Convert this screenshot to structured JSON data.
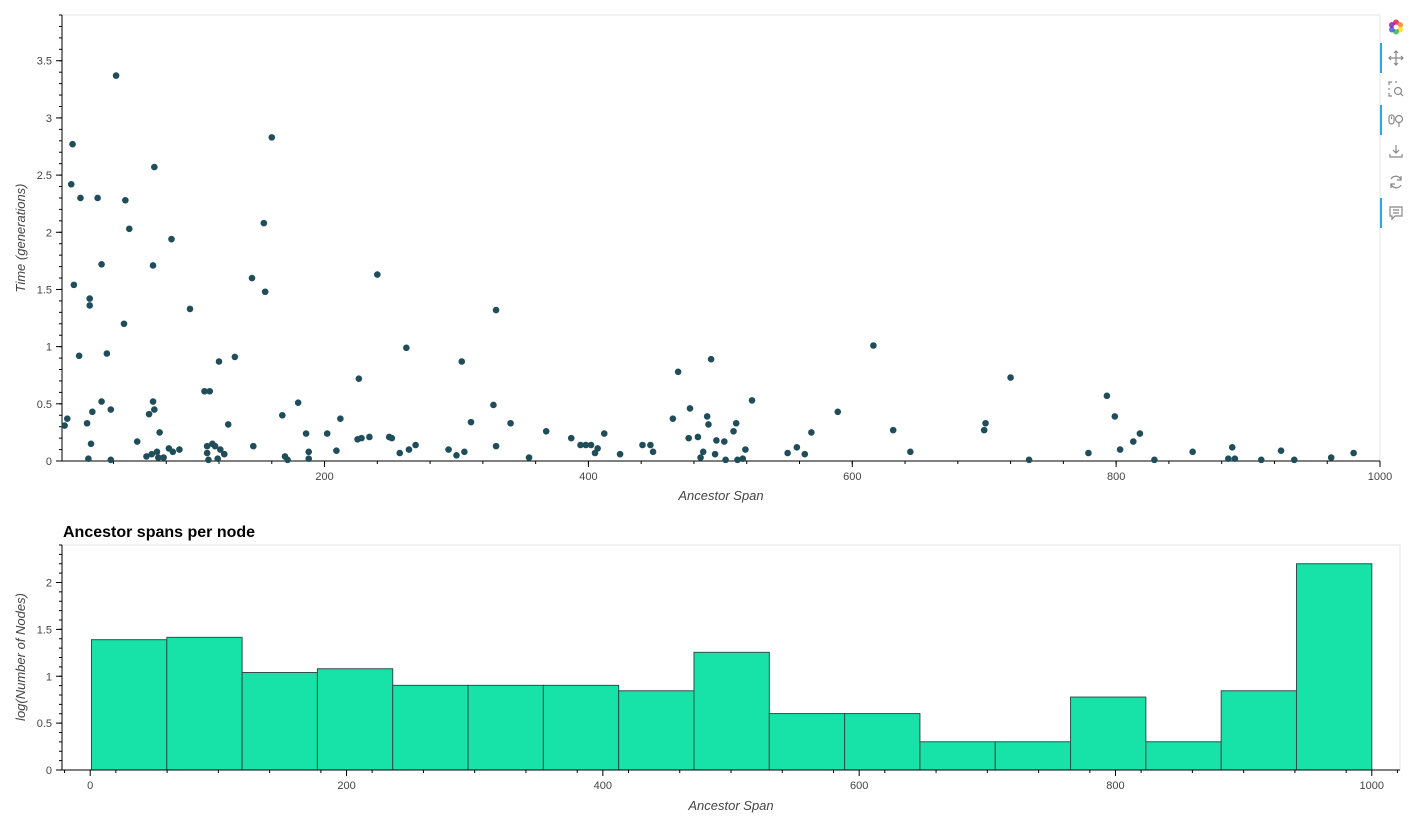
{
  "chart_data": [
    {
      "type": "scatter",
      "title": "",
      "xlabel": "Ancestor Span",
      "ylabel": "Time (generations)",
      "xlim": [
        1,
        1000
      ],
      "ylim": [
        0,
        3.9
      ],
      "xticks": [
        200,
        400,
        600,
        800,
        1000
      ],
      "xtick_labels": [
        "200",
        "400",
        "600",
        "800",
        "1000"
      ],
      "yticks": [
        0,
        0.5,
        1,
        1.5,
        2,
        2.5,
        3,
        3.5
      ],
      "ytick_labels": [
        "0",
        "0.5",
        "1",
        "1.5",
        "2",
        "2.5",
        "3",
        "3.5"
      ],
      "point_color": "#1f4e5a",
      "grid": false,
      "points": [
        [
          3,
          0.31
        ],
        [
          5,
          0.37
        ],
        [
          8,
          2.42
        ],
        [
          9,
          2.77
        ],
        [
          10,
          1.54
        ],
        [
          14,
          0.92
        ],
        [
          15,
          2.3
        ],
        [
          20,
          0.33
        ],
        [
          21,
          0.02
        ],
        [
          22,
          1.42
        ],
        [
          22,
          1.36
        ],
        [
          23,
          0.15
        ],
        [
          24,
          0.43
        ],
        [
          28,
          2.3
        ],
        [
          31,
          1.72
        ],
        [
          31,
          0.52
        ],
        [
          35,
          0.94
        ],
        [
          38,
          0.45
        ],
        [
          38,
          0.01
        ],
        [
          42,
          3.37
        ],
        [
          48,
          1.2
        ],
        [
          49,
          2.28
        ],
        [
          52,
          2.03
        ],
        [
          58,
          0.17
        ],
        [
          65,
          0.04
        ],
        [
          67,
          0.41
        ],
        [
          69,
          0.06
        ],
        [
          70,
          0.52
        ],
        [
          70,
          1.71
        ],
        [
          71,
          2.57
        ],
        [
          71,
          0.45
        ],
        [
          73,
          0.08
        ],
        [
          74,
          0.03
        ],
        [
          75,
          0.25
        ],
        [
          78,
          0.03
        ],
        [
          82,
          0.11
        ],
        [
          84,
          1.94
        ],
        [
          85,
          0.08
        ],
        [
          90,
          0.1
        ],
        [
          98,
          1.33
        ],
        [
          109,
          0.61
        ],
        [
          113,
          0.61
        ],
        [
          111,
          0.13
        ],
        [
          111,
          0.07
        ],
        [
          112,
          0.01
        ],
        [
          115,
          0.15
        ],
        [
          117,
          0.13
        ],
        [
          119,
          0.02
        ],
        [
          120,
          0.87
        ],
        [
          121,
          0.1
        ],
        [
          124,
          0.06
        ],
        [
          127,
          0.32
        ],
        [
          132,
          0.91
        ],
        [
          145,
          1.6
        ],
        [
          146,
          0.13
        ],
        [
          154,
          2.08
        ],
        [
          155,
          1.48
        ],
        [
          160,
          2.83
        ],
        [
          168,
          0.4
        ],
        [
          170,
          0.04
        ],
        [
          172,
          0.01
        ],
        [
          180,
          0.51
        ],
        [
          186,
          0.24
        ],
        [
          188,
          0.08
        ],
        [
          188,
          0.02
        ],
        [
          202,
          0.24
        ],
        [
          209,
          0.09
        ],
        [
          212,
          0.37
        ],
        [
          225,
          0.19
        ],
        [
          226,
          0.72
        ],
        [
          228,
          0.2
        ],
        [
          234,
          0.21
        ],
        [
          240,
          1.63
        ],
        [
          249,
          0.21
        ],
        [
          251,
          0.2
        ],
        [
          257,
          0.07
        ],
        [
          262,
          0.99
        ],
        [
          264,
          0.1
        ],
        [
          269,
          0.14
        ],
        [
          294,
          0.1
        ],
        [
          300,
          0.05
        ],
        [
          304,
          0.87
        ],
        [
          306,
          0.08
        ],
        [
          311,
          0.34
        ],
        [
          328,
          0.49
        ],
        [
          330,
          1.32
        ],
        [
          330,
          0.13
        ],
        [
          341,
          0.33
        ],
        [
          355,
          0.03
        ],
        [
          368,
          0.26
        ],
        [
          387,
          0.2
        ],
        [
          394,
          0.14
        ],
        [
          398,
          0.14
        ],
        [
          402,
          0.14
        ],
        [
          405,
          0.07
        ],
        [
          407,
          0.11
        ],
        [
          412,
          0.24
        ],
        [
          424,
          0.06
        ],
        [
          441,
          0.14
        ],
        [
          447,
          0.14
        ],
        [
          449,
          0.08
        ],
        [
          464,
          0.37
        ],
        [
          468,
          0.78
        ],
        [
          476,
          0.2
        ],
        [
          477,
          0.46
        ],
        [
          483,
          0.21
        ],
        [
          485,
          0.03
        ],
        [
          487,
          0.08
        ],
        [
          490,
          0.39
        ],
        [
          491,
          0.32
        ],
        [
          493,
          0.89
        ],
        [
          496,
          0.06
        ],
        [
          497,
          0.18
        ],
        [
          503,
          0.17
        ],
        [
          504,
          0.01
        ],
        [
          510,
          0.26
        ],
        [
          512,
          0.33
        ],
        [
          513,
          0.01
        ],
        [
          517,
          0.02
        ],
        [
          519,
          0.1
        ],
        [
          524,
          0.53
        ],
        [
          551,
          0.07
        ],
        [
          558,
          0.12
        ],
        [
          564,
          0.06
        ],
        [
          569,
          0.25
        ],
        [
          589,
          0.43
        ],
        [
          616,
          1.01
        ],
        [
          631,
          0.27
        ],
        [
          644,
          0.08
        ],
        [
          700,
          0.27
        ],
        [
          701,
          0.33
        ],
        [
          734,
          0.01
        ],
        [
          720,
          0.73
        ],
        [
          779,
          0.07
        ],
        [
          793,
          0.57
        ],
        [
          799,
          0.39
        ],
        [
          803,
          0.1
        ],
        [
          813,
          0.17
        ],
        [
          818,
          0.24
        ],
        [
          829,
          0.01
        ],
        [
          858,
          0.08
        ],
        [
          885,
          0.02
        ],
        [
          888,
          0.12
        ],
        [
          890,
          0.02
        ],
        [
          910,
          0.01
        ],
        [
          925,
          0.09
        ],
        [
          935,
          0.01
        ],
        [
          963,
          0.03
        ],
        [
          980,
          0.07
        ]
      ]
    },
    {
      "type": "bar",
      "subtype": "histogram",
      "title": "Ancestor spans per node",
      "xlabel": "Ancestor Span",
      "ylabel": "log(Number of Nodes)",
      "xlim": [
        -22,
        1022
      ],
      "ylim": [
        0,
        2.4
      ],
      "xticks": [
        0,
        200,
        400,
        600,
        800,
        1000
      ],
      "xtick_labels": [
        "0",
        "200",
        "400",
        "600",
        "800",
        "1000"
      ],
      "yticks": [
        0,
        0.5,
        1,
        1.5,
        2
      ],
      "ytick_labels": [
        "0",
        "0.5",
        "1",
        "1.5",
        "2"
      ],
      "bar_color": "#17e2a8",
      "bar_edge_color": "#2f4f4f",
      "bin_edges": [
        1,
        59.76,
        118.53,
        177.29,
        236.06,
        294.82,
        353.59,
        412.35,
        471.12,
        529.88,
        588.65,
        647.41,
        706.18,
        764.94,
        823.71,
        882.47,
        941.24,
        1000
      ],
      "values": [
        1.39,
        1.415,
        1.04,
        1.08,
        0.903,
        0.903,
        0.903,
        0.845,
        1.255,
        0.602,
        0.602,
        0.301,
        0.301,
        0.778,
        0.301,
        0.845,
        2.2
      ]
    }
  ],
  "toolbar": {
    "items": [
      {
        "icon": "bokeh-logo-icon",
        "active": false
      },
      {
        "icon": "pan-icon",
        "active": true
      },
      {
        "icon": "box-zoom-icon",
        "active": false
      },
      {
        "icon": "wheel-zoom-icon",
        "active": true
      },
      {
        "icon": "save-icon",
        "active": false
      },
      {
        "icon": "reset-icon",
        "active": false
      },
      {
        "icon": "hover-icon",
        "active": true
      }
    ]
  }
}
